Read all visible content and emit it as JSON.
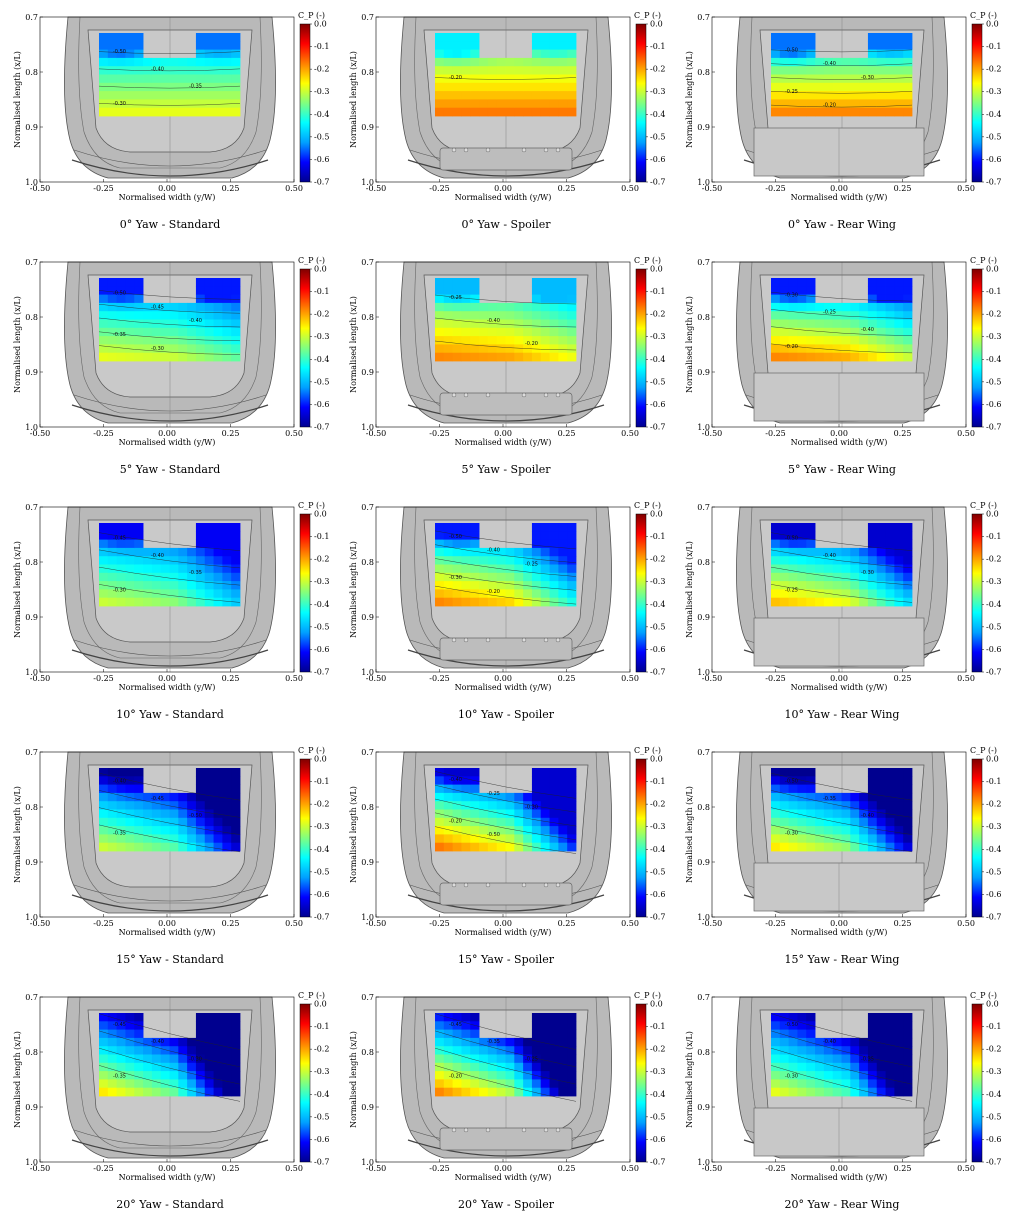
{
  "chart_data": {
    "type": "heatmap",
    "description_hidden": false,
    "xlabel": "Normalised width (y/W)",
    "ylabel": "Normalised length (x/L)",
    "colorbar_label": "C_P (-)",
    "x_ticks": [
      "-0.50",
      "-0.25",
      "0.00",
      "0.25",
      "0.50"
    ],
    "y_ticks": [
      "0.7",
      "0.8",
      "0.9",
      "1.0"
    ],
    "xlim": [
      -0.5,
      0.5
    ],
    "ylim": [
      0.7,
      1.0
    ],
    "colorbar_ticks": [
      "0.0",
      "-0.1",
      "-0.2",
      "-0.3",
      "-0.4",
      "-0.5",
      "-0.6",
      "-0.7"
    ],
    "clim": [
      -0.7,
      0.0
    ],
    "colormap": [
      "#00008f",
      "#0000ff",
      "#00a0ff",
      "#00ffff",
      "#80ff80",
      "#ffff00",
      "#ff8000",
      "#ff0000",
      "#800000"
    ],
    "columns": [
      "Standard",
      "Spoiler",
      "Rear Wing"
    ],
    "rows": [
      "0°",
      "5°",
      "10°",
      "15°",
      "20°"
    ],
    "panels": [
      {
        "caption": "0° Yaw - Standard",
        "yaw": 0,
        "config": "Standard",
        "cp_range": [
          -0.55,
          -0.28
        ],
        "contours": [
          "-0.50",
          "-0.40",
          "-0.35",
          "-0.30"
        ]
      },
      {
        "caption": "0° Yaw - Spoiler",
        "yaw": 0,
        "config": "Spoiler",
        "cp_range": [
          -0.45,
          -0.17
        ],
        "contours": [
          "-0.20"
        ]
      },
      {
        "caption": "0° Yaw - Rear Wing",
        "yaw": 0,
        "config": "Rear Wing",
        "cp_range": [
          -0.55,
          -0.18
        ],
        "contours": [
          "-0.50",
          "-0.40",
          "-0.30",
          "-0.25",
          "-0.20"
        ]
      },
      {
        "caption": "5° Yaw - Standard",
        "yaw": 5,
        "config": "Standard",
        "cp_range": [
          -0.6,
          -0.28
        ],
        "contours": [
          "-0.50",
          "-0.45",
          "-0.40",
          "-0.35",
          "-0.30"
        ]
      },
      {
        "caption": "5° Yaw - Spoiler",
        "yaw": 5,
        "config": "Spoiler",
        "cp_range": [
          -0.5,
          -0.18
        ],
        "contours": [
          "-0.25",
          "-0.40",
          "-0.20"
        ]
      },
      {
        "caption": "5° Yaw - Rear Wing",
        "yaw": 5,
        "config": "Rear Wing",
        "cp_range": [
          -0.6,
          -0.18
        ],
        "contours": [
          "-0.30",
          "-0.25",
          "-0.40",
          "-0.20"
        ]
      },
      {
        "caption": "10° Yaw - Standard",
        "yaw": 10,
        "config": "Standard",
        "cp_range": [
          -0.62,
          -0.3
        ],
        "contours": [
          "-0.45",
          "-0.40",
          "-0.35",
          "-0.30"
        ]
      },
      {
        "caption": "10° Yaw - Spoiler",
        "yaw": 10,
        "config": "Spoiler",
        "cp_range": [
          -0.6,
          -0.18
        ],
        "contours": [
          "-0.50",
          "-0.40",
          "-0.25",
          "-0.30",
          "-0.20"
        ]
      },
      {
        "caption": "10° Yaw - Rear Wing",
        "yaw": 10,
        "config": "Rear Wing",
        "cp_range": [
          -0.65,
          -0.22
        ],
        "contours": [
          "-0.50",
          "-0.40",
          "-0.30",
          "-0.25"
        ]
      },
      {
        "caption": "15° Yaw - Standard",
        "yaw": 15,
        "config": "Standard",
        "cp_range": [
          -0.7,
          -0.3
        ],
        "contours": [
          "-0.40",
          "-0.45",
          "-0.50",
          "-0.35"
        ]
      },
      {
        "caption": "15° Yaw - Spoiler",
        "yaw": 15,
        "config": "Spoiler",
        "cp_range": [
          -0.65,
          -0.17
        ],
        "contours": [
          "-0.40",
          "-0.25",
          "-0.30",
          "-0.20",
          "-0.50"
        ]
      },
      {
        "caption": "15° Yaw - Rear Wing",
        "yaw": 15,
        "config": "Rear Wing",
        "cp_range": [
          -0.7,
          -0.25
        ],
        "contours": [
          "-0.50",
          "-0.35",
          "-0.40",
          "-0.30"
        ]
      },
      {
        "caption": "20° Yaw - Standard",
        "yaw": 20,
        "config": "Standard",
        "cp_range": [
          -0.7,
          -0.25
        ],
        "contours": [
          "-0.45",
          "-0.40",
          "-0.30",
          "-0.35"
        ]
      },
      {
        "caption": "20° Yaw - Spoiler",
        "yaw": 20,
        "config": "Spoiler",
        "cp_range": [
          -0.7,
          -0.18
        ],
        "contours": [
          "-0.45",
          "-0.35",
          "-0.25",
          "-0.20"
        ]
      },
      {
        "caption": "20° Yaw - Rear Wing",
        "yaw": 20,
        "config": "Rear Wing",
        "cp_range": [
          -0.7,
          -0.28
        ],
        "contours": [
          "-0.50",
          "-0.40",
          "-0.35",
          "-0.30"
        ]
      }
    ]
  }
}
